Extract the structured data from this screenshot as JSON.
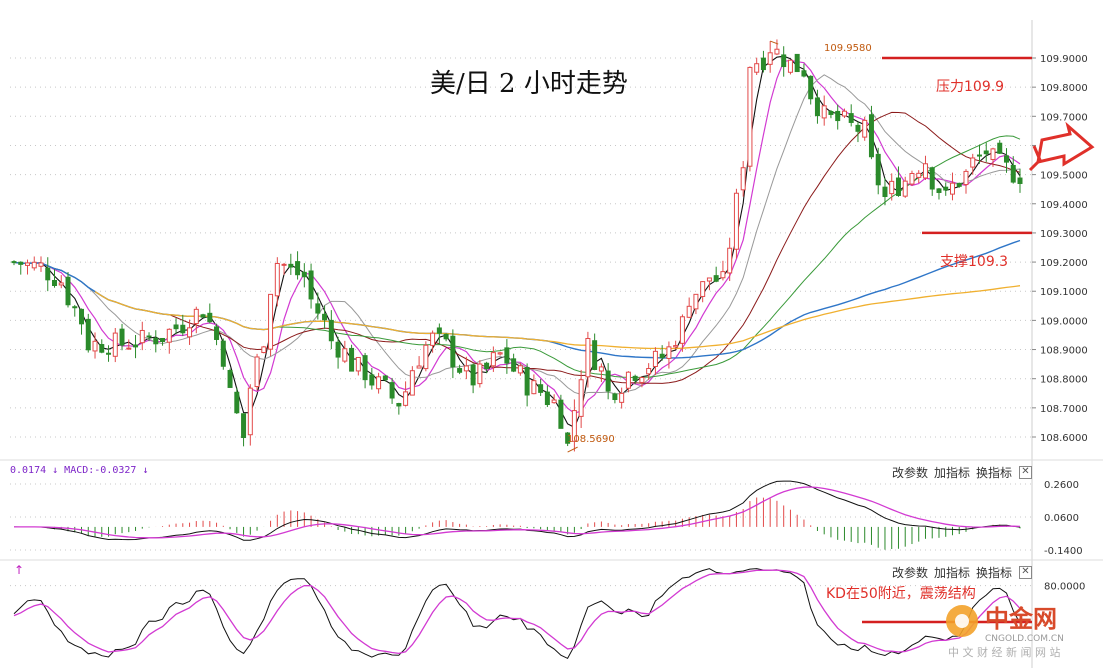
{
  "title": "美/日 2 小时走势",
  "annotations": {
    "high": "109.9580",
    "low": "108.5690",
    "resistance": "压力109.9",
    "support": "支撑109.3",
    "kd_note": "KD在50附近，震荡结构"
  },
  "panels": {
    "macd_label": "0.0174 ↓  MACD:-0.0327 ↓",
    "toolbar": [
      "改参数",
      "加指标",
      "换指标"
    ],
    "close": "✕",
    "kd_arrow": "↑"
  },
  "watermark": {
    "brand": "中金网",
    "url": "CNGOLD.COM.CN",
    "footer": "中 文 财 经 新 闻 网 站"
  },
  "chart_data": [
    {
      "type": "candlestick",
      "title": "美/日 2 小时走势",
      "y_ticks": [
        "109.9000",
        "109.8000",
        "109.7000",
        "109.6000",
        "109.5000",
        "109.4000",
        "109.3000",
        "109.2000",
        "109.1000",
        "109.0000",
        "108.9000",
        "108.8000",
        "108.7000",
        "108.6000"
      ],
      "ylim": [
        108.55,
        110.0
      ],
      "high_marker": 109.958,
      "low_marker": 108.569,
      "resistance": 109.9,
      "support": 109.3,
      "colors": {
        "up": "#e24a4a",
        "down": "#2b8a2b",
        "ma_black": "#111111",
        "ma_magenta": "#d23ad2",
        "ma_gray": "#999999",
        "ma_brown": "#8b1a1a",
        "ma_green": "#3a9a3a",
        "ma_blue": "#2f76c8",
        "ma_orange": "#f0b030",
        "level_line": "#d42020"
      }
    },
    {
      "type": "macd",
      "y_ticks": [
        "0.2600",
        "0.0600",
        "-0.1400"
      ],
      "ylim": [
        -0.18,
        0.29
      ]
    },
    {
      "type": "kd",
      "y_ticks": [
        "80.0000"
      ]
    }
  ]
}
